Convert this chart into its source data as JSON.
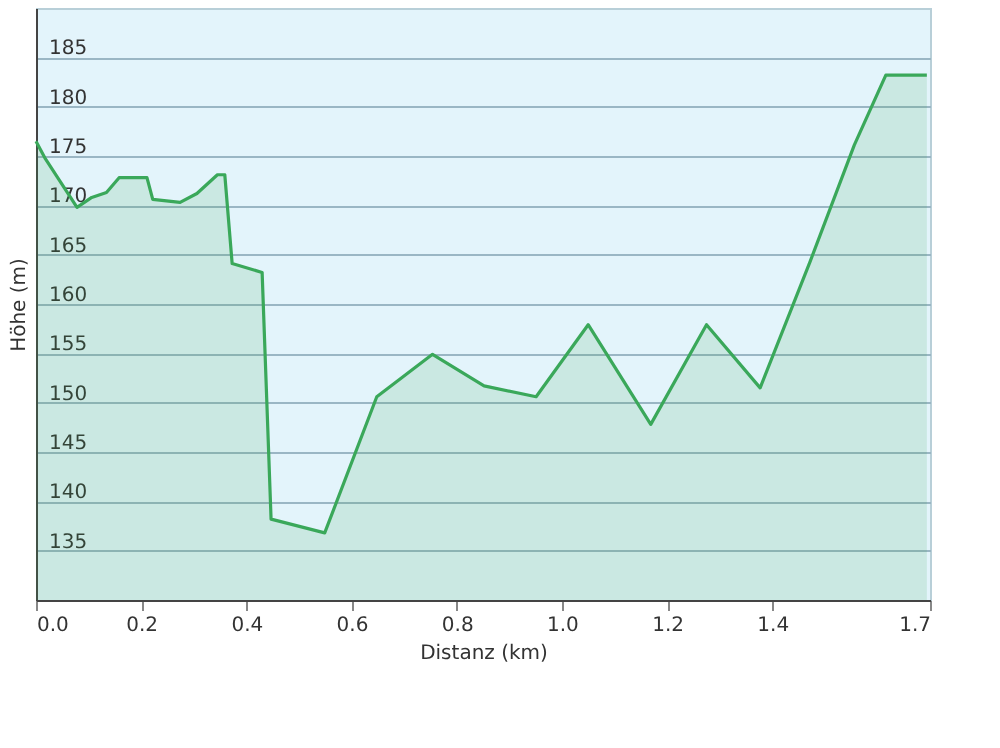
{
  "chart_data": {
    "type": "area",
    "xlabel": "Distanz (km)",
    "ylabel": "Höhe (m)",
    "x": [
      0,
      0.018,
      0.078,
      0.106,
      0.134,
      0.158,
      0.211,
      0.222,
      0.274,
      0.306,
      0.345,
      0.359,
      0.373,
      0.43,
      0.447,
      0.549,
      0.648,
      0.754,
      0.852,
      0.951,
      1.05,
      1.169,
      1.275,
      1.377,
      1.472,
      1.556,
      1.616,
      1.694
    ],
    "series": [
      {
        "color": "#3aa85a",
        "values": [
          176.5,
          174.7,
          169.8,
          170.8,
          171.3,
          172.8,
          172.8,
          170.6,
          170.3,
          171.2,
          173.1,
          173.1,
          164.1,
          163.2,
          138.2,
          136.8,
          150.6,
          154.9,
          151.7,
          150.6,
          157.9,
          147.8,
          157.9,
          151.5,
          164.3,
          176.1,
          183.2,
          183.2
        ]
      }
    ],
    "xlim": [
      0,
      1.7
    ],
    "xticks": [
      {
        "value": 0,
        "label": "0.0"
      },
      0.2,
      0.4,
      0.6,
      0.8,
      {
        "value": 1,
        "label": "1.0"
      },
      1.2,
      1.4,
      1.7
    ],
    "ylim": [
      130,
      190
    ],
    "yticks": [
      135,
      140,
      145,
      150,
      155,
      160,
      165,
      170,
      175,
      180,
      185
    ],
    "grid": "y"
  }
}
